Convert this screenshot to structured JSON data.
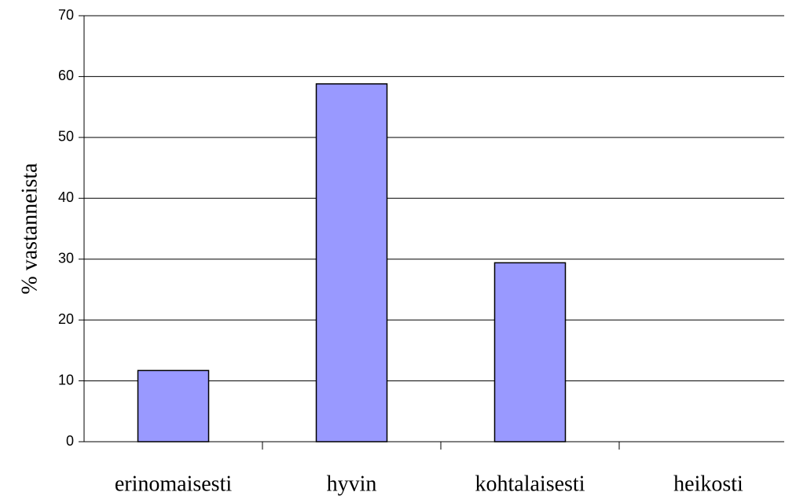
{
  "chart_data": {
    "type": "bar",
    "y_label": "% vastanneista",
    "categories": [
      "erinomaisesti",
      "hyvin",
      "kohtalaisesti",
      "heikosti"
    ],
    "values": [
      11.7,
      58.8,
      29.4,
      0
    ],
    "color": "#9999ff",
    "ylim": [
      0,
      70
    ],
    "yticks": [
      0,
      10,
      20,
      30,
      40,
      50,
      60,
      70
    ],
    "grid": true
  }
}
